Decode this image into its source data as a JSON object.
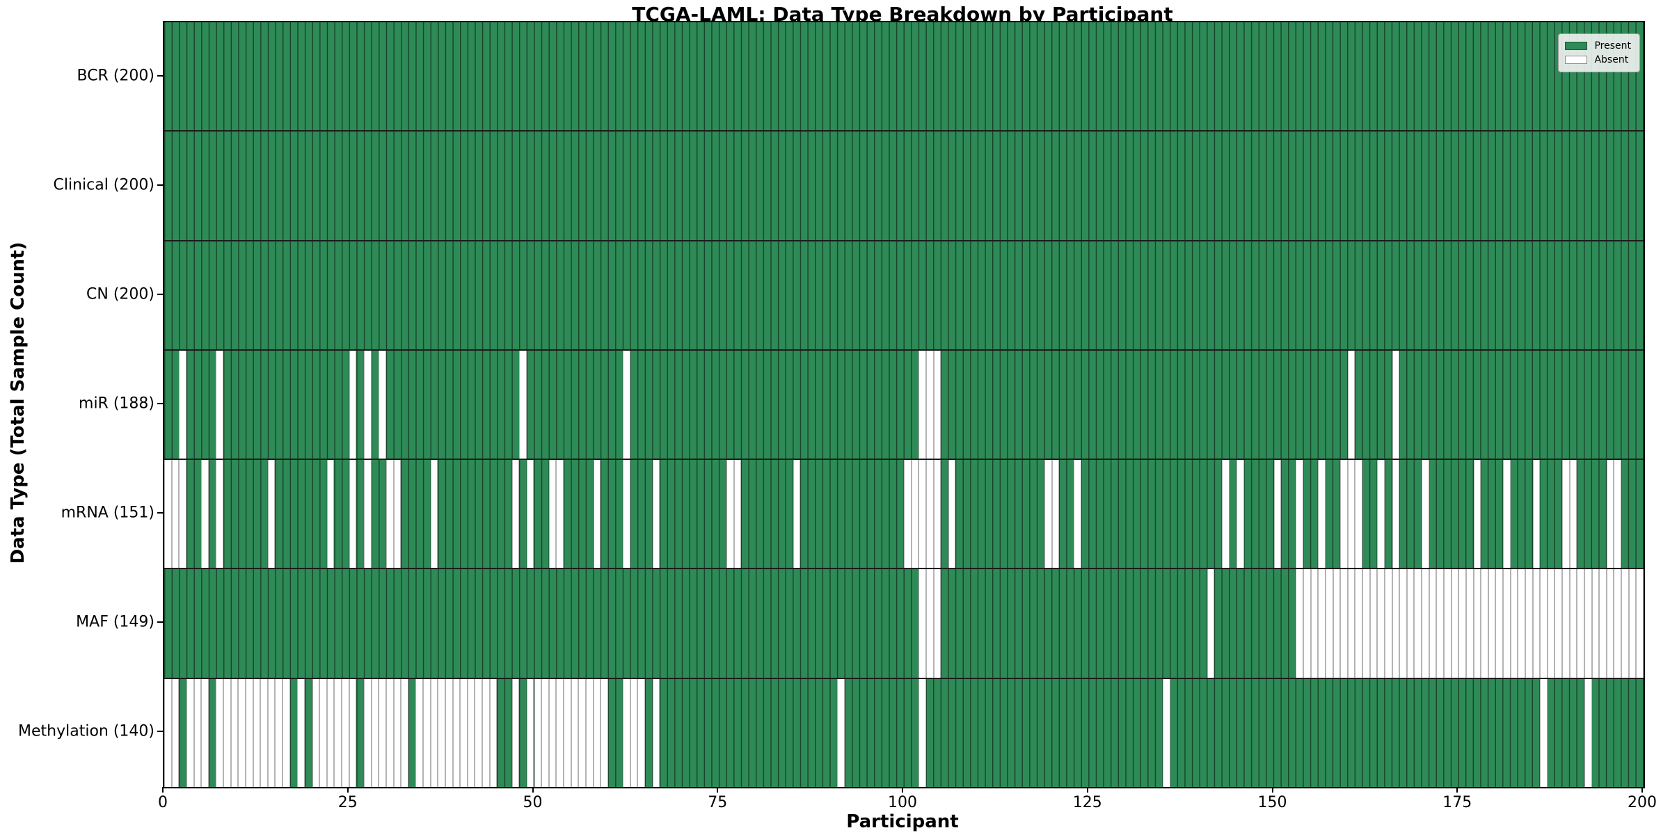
{
  "title": "TCGA-LAML: Data Type Breakdown by Participant",
  "xlabel": "Participant",
  "ylabel": "Data Type (Total Sample Count)",
  "legend": {
    "present_label": "Present",
    "absent_label": "Absent"
  },
  "colors": {
    "present": "#2e8b57",
    "absent": "#ffffff",
    "grid_on_green": "rgba(0,0,0,0.5)",
    "grid_on_white": "#b3b3b3",
    "spine": "#000000",
    "legend_bg": "#f2f2f2"
  },
  "chart_data": {
    "type": "heatmap",
    "x": {
      "label": "Participant",
      "min": 0,
      "max": 200
    },
    "n_participants": 200,
    "x_ticks": [
      0,
      25,
      50,
      75,
      100,
      125,
      150,
      175,
      200
    ],
    "legend": [
      "Present",
      "Absent"
    ],
    "legend_position": "upper right",
    "grid": true,
    "rows": [
      {
        "label": "BCR (200)",
        "name": "BCR",
        "total": 200,
        "absent": []
      },
      {
        "label": "Clinical (200)",
        "name": "Clinical",
        "total": 200,
        "absent": []
      },
      {
        "label": "CN (200)",
        "name": "CN",
        "total": 200,
        "absent": []
      },
      {
        "label": "miR (188)",
        "name": "miR",
        "total": 188,
        "absent": [
          2,
          7,
          25,
          27,
          29,
          48,
          62,
          102,
          103,
          104,
          160,
          166
        ]
      },
      {
        "label": "mRNA (151)",
        "name": "mRNA",
        "total": 151,
        "absent": [
          0,
          1,
          2,
          5,
          7,
          14,
          22,
          25,
          27,
          30,
          31,
          36,
          47,
          49,
          52,
          53,
          58,
          62,
          66,
          76,
          77,
          85,
          100,
          101,
          102,
          103,
          104,
          106,
          119,
          120,
          123,
          143,
          145,
          150,
          153,
          156,
          159,
          160,
          161,
          164,
          166,
          170,
          177,
          181,
          185,
          189,
          190,
          195,
          196
        ]
      },
      {
        "label": "MAF (149)",
        "name": "MAF",
        "total": 149,
        "absent": [
          102,
          103,
          104,
          141,
          153,
          154,
          155,
          156,
          157,
          158,
          159,
          160,
          161,
          162,
          163,
          164,
          165,
          166,
          167,
          168,
          169,
          170,
          171,
          172,
          173,
          174,
          175,
          176,
          177,
          178,
          179,
          180,
          181,
          182,
          183,
          184,
          185,
          186,
          187,
          188,
          189,
          190,
          191,
          192,
          193,
          194,
          195,
          196,
          197,
          198,
          199
        ]
      },
      {
        "label": "Methylation (140)",
        "name": "Methylation",
        "total": 140,
        "absent": [
          0,
          1,
          3,
          4,
          5,
          7,
          8,
          9,
          10,
          11,
          12,
          13,
          14,
          15,
          16,
          18,
          20,
          21,
          22,
          23,
          24,
          25,
          27,
          28,
          29,
          30,
          31,
          32,
          34,
          35,
          36,
          37,
          38,
          39,
          40,
          41,
          42,
          43,
          44,
          47,
          49,
          50,
          51,
          52,
          53,
          54,
          55,
          56,
          57,
          58,
          59,
          62,
          63,
          64,
          66,
          91,
          102,
          135,
          186,
          192
        ]
      }
    ]
  }
}
